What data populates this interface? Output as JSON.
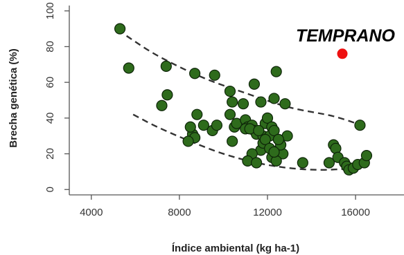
{
  "chart_data": {
    "type": "scatter",
    "title": "TEMPRANO",
    "xlabel": "Índice ambiental (kg ha-1)",
    "ylabel": "Brecha genética (%)",
    "xlim": [
      3000,
      18200
    ],
    "ylim": [
      -3,
      103
    ],
    "x_ticks": [
      4000,
      8000,
      12000,
      16000
    ],
    "x_tick_labels": [
      "4000",
      "8000",
      "12000",
      "16000"
    ],
    "y_ticks": [
      0,
      20,
      40,
      60,
      80,
      100
    ],
    "y_tick_labels": [
      "0",
      "20",
      "40",
      "60",
      "80",
      "100"
    ],
    "grid": false,
    "colors": {
      "points": "#2e6b1c",
      "point_edge": "#0d2408",
      "highlight": "#ee1111",
      "curve": "#333333"
    },
    "series": [
      {
        "x": [
          5300,
          5700,
          7400,
          7450,
          7200,
          8700,
          9600,
          8800,
          9100,
          8600,
          8700,
          8400,
          8500,
          9500,
          9700,
          10300,
          10400,
          10300,
          10500,
          10400,
          10600,
          10900,
          11000,
          11100,
          11300,
          11400,
          11500,
          11400,
          11700,
          11800,
          11900,
          12000,
          12200,
          12100,
          12300,
          12400,
          12500,
          12500,
          12600,
          12700,
          12800,
          12900,
          11900,
          11700,
          11300,
          11100,
          11500,
          12200,
          12400,
          12600,
          12500,
          12300,
          11000,
          11200,
          11600,
          11800,
          11900,
          12100,
          12300,
          13600,
          14800,
          15000,
          15100,
          15200,
          15500,
          15600,
          15700,
          15900,
          16100,
          16400,
          16500,
          16200
        ],
        "y": [
          90,
          68,
          69,
          53,
          47,
          65,
          64,
          42,
          36,
          31,
          29,
          27,
          35,
          33,
          36,
          55,
          49,
          42,
          35,
          27,
          37,
          48,
          39,
          35,
          36,
          33,
          31,
          59,
          49,
          30,
          37,
          40,
          35,
          30,
          33,
          66,
          28,
          22,
          25,
          20,
          48,
          30,
          25,
          22,
          20,
          16,
          15,
          18,
          16,
          25,
          28,
          51,
          34,
          34,
          33,
          26,
          28,
          23,
          21,
          15,
          15,
          25,
          23,
          18,
          15,
          13,
          11,
          12,
          14,
          15,
          19,
          36
        ]
      },
      {
        "x": [
          15400
        ],
        "y": [
          76
        ]
      }
    ],
    "curves": [
      {
        "x": [
          5600,
          7000,
          9000,
          11000,
          13000,
          15000,
          16500
        ],
        "y": [
          86,
          75,
          63,
          54,
          46,
          41,
          35
        ]
      },
      {
        "x": [
          5900,
          7000,
          8500,
          10000,
          11500,
          13000,
          14500,
          16000
        ],
        "y": [
          42,
          35,
          27,
          20,
          15,
          12,
          11,
          12
        ]
      }
    ]
  }
}
